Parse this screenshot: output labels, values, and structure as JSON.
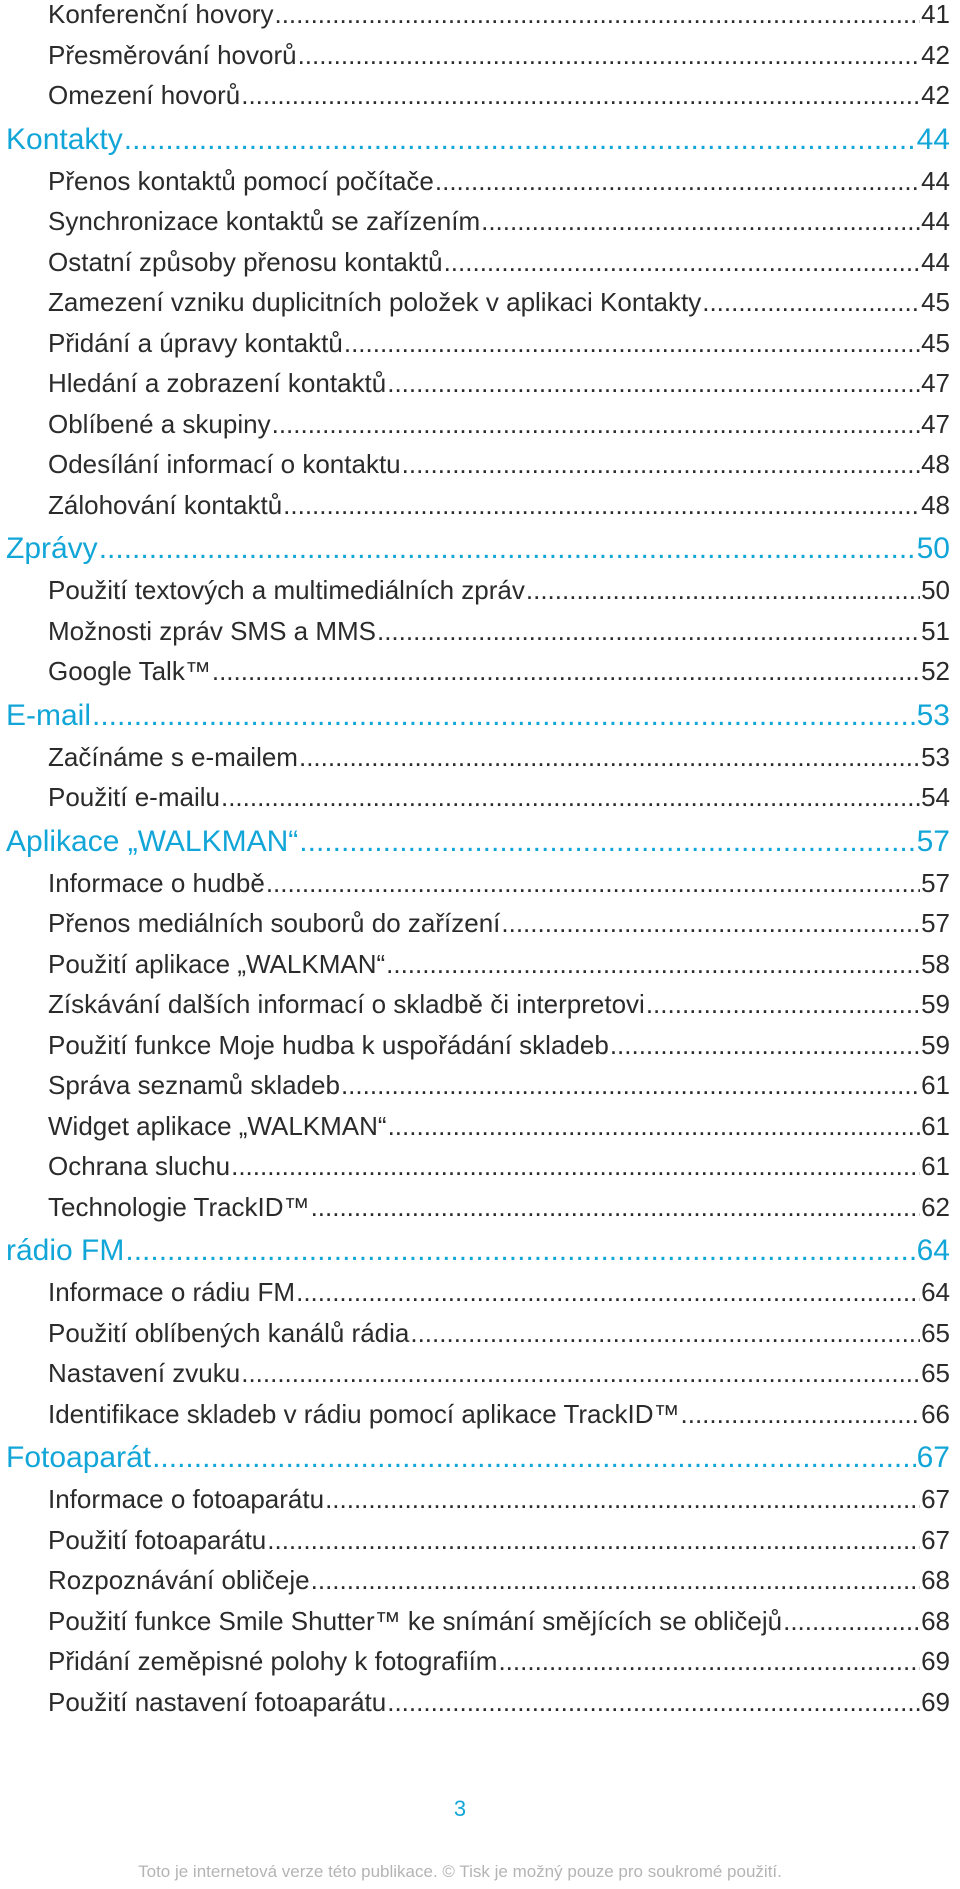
{
  "toc": [
    {
      "level": "sub",
      "title": "Konferenční hovory",
      "page": "41"
    },
    {
      "level": "sub",
      "title": "Přesměrování hovorů",
      "page": "42"
    },
    {
      "level": "sub",
      "title": "Omezení hovorů",
      "page": "42"
    },
    {
      "level": "sect",
      "title": "Kontakty ",
      "page": "44"
    },
    {
      "level": "sub",
      "title": "Přenos kontaktů pomocí počítače",
      "page": "44"
    },
    {
      "level": "sub",
      "title": "Synchronizace kontaktů se zařízením",
      "page": "44"
    },
    {
      "level": "sub",
      "title": "Ostatní způsoby přenosu kontaktů",
      "page": "44"
    },
    {
      "level": "sub",
      "title": "Zamezení vzniku duplicitních položek v aplikaci Kontakty",
      "page": "45"
    },
    {
      "level": "sub",
      "title": "Přidání a úpravy kontaktů",
      "page": "45"
    },
    {
      "level": "sub",
      "title": "Hledání a zobrazení kontaktů",
      "page": "47"
    },
    {
      "level": "sub",
      "title": "Oblíbené a skupiny",
      "page": "47"
    },
    {
      "level": "sub",
      "title": "Odesílání informací o kontaktu",
      "page": "48"
    },
    {
      "level": "sub",
      "title": "Zálohování kontaktů",
      "page": "48"
    },
    {
      "level": "sect",
      "title": "Zprávy",
      "page": "50"
    },
    {
      "level": "sub",
      "title": "Použití textových a multimediálních zpráv",
      "page": "50"
    },
    {
      "level": "sub",
      "title": "Možnosti zpráv SMS a MMS",
      "page": "51"
    },
    {
      "level": "sub",
      "title": "Google Talk™ ",
      "page": "52"
    },
    {
      "level": "sect",
      "title": "E-mail",
      "page": "53"
    },
    {
      "level": "sub",
      "title": "Začínáme s e-mailem",
      "page": "53"
    },
    {
      "level": "sub",
      "title": "Použití e-mailu",
      "page": "54"
    },
    {
      "level": "sect",
      "title": "Aplikace „WALKMAN“ ",
      "page": "57"
    },
    {
      "level": "sub",
      "title": "Informace o hudbě",
      "page": "57"
    },
    {
      "level": "sub",
      "title": "Přenos mediálních souborů do zařízení ",
      "page": "57"
    },
    {
      "level": "sub",
      "title": "Použití aplikace „WALKMAN“ ",
      "page": "58"
    },
    {
      "level": "sub",
      "title": "Získávání dalších informací o skladbě či interpretovi",
      "page": "59"
    },
    {
      "level": "sub",
      "title": "Použití funkce Moje hudba k uspořádání skladeb ",
      "page": "59"
    },
    {
      "level": "sub",
      "title": "Správa seznamů skladeb",
      "page": "61"
    },
    {
      "level": "sub",
      "title": "Widget aplikace „WALKMAN“ ",
      "page": "61"
    },
    {
      "level": "sub",
      "title": "Ochrana sluchu",
      "page": "61"
    },
    {
      "level": "sub",
      "title": "Technologie TrackID™",
      "page": "62"
    },
    {
      "level": "sect",
      "title": "rádio FM",
      "page": "64"
    },
    {
      "level": "sub",
      "title": "Informace o rádiu FM",
      "page": "64"
    },
    {
      "level": "sub",
      "title": "Použití oblíbených kanálů rádia",
      "page": "65"
    },
    {
      "level": "sub",
      "title": "Nastavení zvuku",
      "page": "65"
    },
    {
      "level": "sub",
      "title": "Identifikace skladeb v rádiu pomocí aplikace TrackID™",
      "page": "66"
    },
    {
      "level": "sect",
      "title": "Fotoaparát",
      "page": "67"
    },
    {
      "level": "sub",
      "title": "Informace o fotoaparátu",
      "page": "67"
    },
    {
      "level": "sub",
      "title": "Použití fotoaparátu",
      "page": "67"
    },
    {
      "level": "sub",
      "title": "Rozpoznávání obličeje",
      "page": "68"
    },
    {
      "level": "sub",
      "title": "Použití funkce Smile Shutter™ ke snímání smějících se obličejů",
      "page": "68"
    },
    {
      "level": "sub",
      "title": "Přidání zeměpisné polohy k fotografiím",
      "page": "69"
    },
    {
      "level": "sub",
      "title": "Použití nastavení fotoaparátu",
      "page": "69"
    }
  ],
  "page_number": "3",
  "footer": "Toto je internetová verze této publikace. © Tisk je možný pouze pro soukromé použití.",
  "colors": {
    "accent": "#12a6d8",
    "text": "#2b2b2b",
    "footer": "#b4b4b4"
  }
}
